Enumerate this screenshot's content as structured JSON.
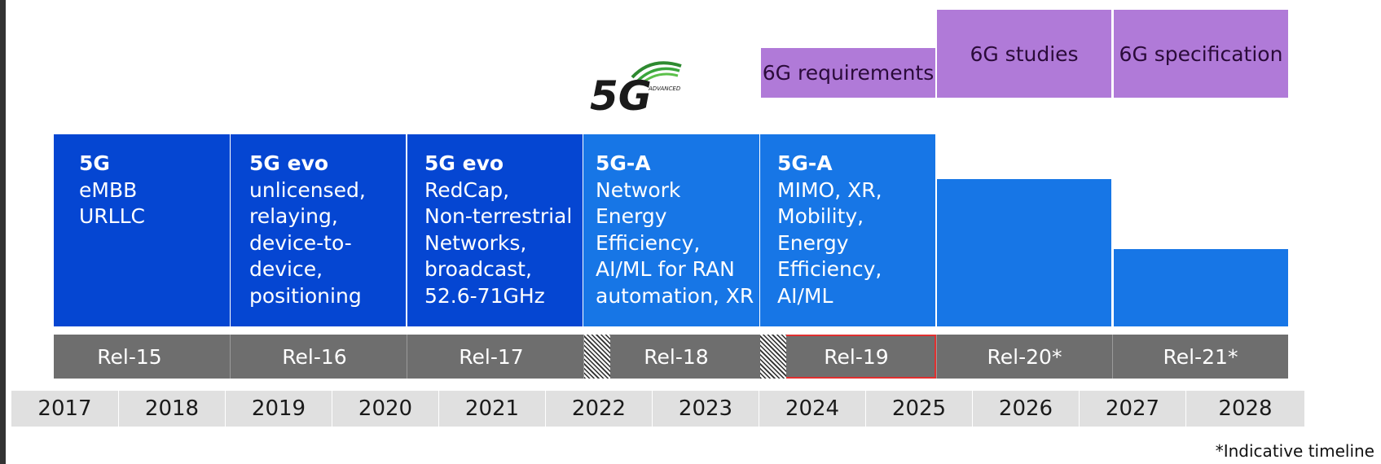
{
  "phases": [
    {
      "label": "6G requirements"
    },
    {
      "label": "6G studies"
    },
    {
      "label": "6G specification"
    }
  ],
  "logo": {
    "main": "5G",
    "sub": "ADVANCED"
  },
  "features": [
    {
      "title": "5G",
      "desc": "eMBB\nURLLC"
    },
    {
      "title": "5G evo",
      "desc": "unlicensed,\nrelaying,\ndevice-to-\ndevice,\npositioning"
    },
    {
      "title": "5G evo",
      "desc": "RedCap,\nNon-terrestrial\nNetworks,\nbroadcast,\n52.6-71GHz"
    },
    {
      "title": "5G-A",
      "desc": "Network\nEnergy\nEfficiency,\nAI/ML for RAN\nautomation, XR"
    },
    {
      "title": "5G-A",
      "desc": "MIMO, XR,\nMobility,\nEnergy\nEfficiency,\nAI/ML"
    }
  ],
  "releases": [
    "Rel-15",
    "Rel-16",
    "Rel-17",
    "Rel-18",
    "Rel-19",
    "Rel-20*",
    "Rel-21*"
  ],
  "years": [
    "2017",
    "2018",
    "2019",
    "2020",
    "2021",
    "2022",
    "2023",
    "2024",
    "2025",
    "2026",
    "2027",
    "2028"
  ],
  "footnote": "*Indicative timeline",
  "colors": {
    "dark_blue": "#0546d2",
    "light_blue": "#1776e6",
    "purple": "#b07ad8",
    "release_gray": "#6e6e6e",
    "year_gray": "#e0e0e0",
    "highlight_red": "#e03030"
  }
}
